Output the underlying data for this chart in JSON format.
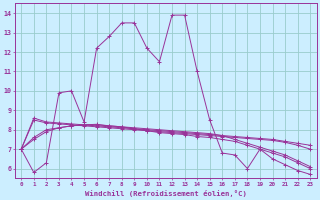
{
  "xlabel": "Windchill (Refroidissement éolien,°C)",
  "xlim": [
    -0.5,
    23.5
  ],
  "ylim": [
    5.5,
    14.5
  ],
  "xticks": [
    0,
    1,
    2,
    3,
    4,
    5,
    6,
    7,
    8,
    9,
    10,
    11,
    12,
    13,
    14,
    15,
    16,
    17,
    18,
    19,
    20,
    21,
    22,
    23
  ],
  "yticks": [
    6,
    7,
    8,
    9,
    10,
    11,
    12,
    13,
    14
  ],
  "bg_color": "#cceeff",
  "grid_color": "#99cccc",
  "line_color": "#993399",
  "series": [
    [
      7.0,
      5.8,
      6.3,
      9.9,
      10.0,
      8.4,
      12.2,
      12.8,
      13.5,
      13.5,
      12.2,
      11.5,
      13.9,
      13.9,
      11.0,
      8.5,
      6.8,
      6.7,
      6.0,
      7.0,
      6.5,
      6.2,
      5.9,
      5.7
    ],
    [
      7.0,
      8.6,
      8.4,
      8.35,
      8.3,
      8.25,
      8.2,
      8.15,
      8.1,
      8.05,
      8.0,
      7.95,
      7.9,
      7.85,
      7.8,
      7.75,
      7.7,
      7.65,
      7.6,
      7.55,
      7.5,
      7.4,
      7.3,
      7.2
    ],
    [
      7.0,
      7.5,
      7.9,
      8.1,
      8.2,
      8.25,
      8.25,
      8.2,
      8.15,
      8.1,
      8.05,
      8.0,
      7.95,
      7.9,
      7.85,
      7.8,
      7.7,
      7.5,
      7.3,
      7.1,
      6.9,
      6.7,
      6.4,
      6.1
    ],
    [
      7.0,
      7.6,
      8.0,
      8.1,
      8.2,
      8.25,
      8.28,
      8.2,
      8.15,
      8.05,
      7.95,
      7.85,
      7.8,
      7.75,
      7.65,
      7.6,
      7.5,
      7.4,
      7.2,
      7.0,
      6.8,
      6.6,
      6.3,
      6.0
    ],
    [
      7.0,
      8.5,
      8.35,
      8.3,
      8.25,
      8.2,
      8.15,
      8.1,
      8.05,
      8.0,
      7.95,
      7.9,
      7.85,
      7.8,
      7.75,
      7.7,
      7.65,
      7.6,
      7.55,
      7.5,
      7.45,
      7.35,
      7.2,
      7.0
    ]
  ]
}
